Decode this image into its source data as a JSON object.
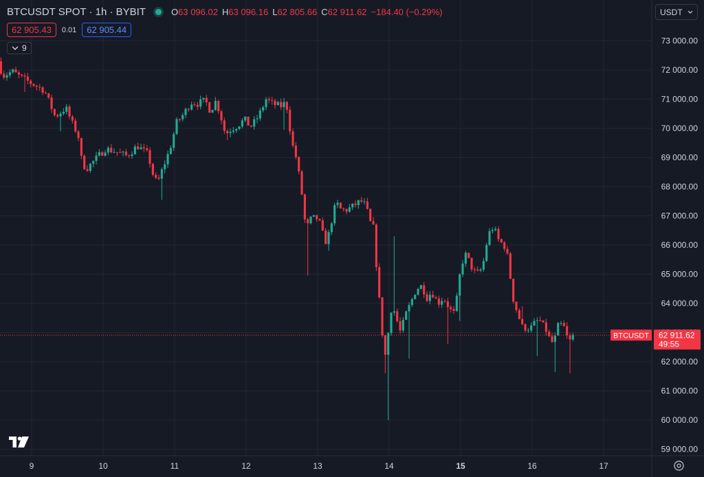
{
  "legend": {
    "symbol_line": "BTCUSDT SPOT · 1h · BYBIT",
    "open_key": "O",
    "open": "63 096.02",
    "high_key": "H",
    "high": "63 096.16",
    "low_key": "L",
    "low": "62 805.66",
    "close_key": "C",
    "close": "62 911.62",
    "change": "−184.40 (−0.29%)"
  },
  "trade": {
    "sell_price": "62 905.43",
    "spread": "0.01",
    "buy_price": "62 905.44"
  },
  "indicators": {
    "count": "9"
  },
  "currency": {
    "selected": "USDT"
  },
  "price_tag": {
    "symbol": "BTCUSDT",
    "price": "62 911.62",
    "countdown": "49:55"
  },
  "icons": {
    "logo": "tradingview-logo-icon",
    "settings": "settings-gear-icon",
    "chevron": "chevron-down-icon"
  },
  "colors": {
    "up": "#22ab94",
    "down": "#f23645",
    "background": "#161a25",
    "grid": "#242733",
    "text": "#d1d4dc",
    "buy": "#2962ff"
  },
  "chart_data": {
    "type": "candlestick",
    "symbol": "BTCUSDT",
    "exchange": "BYBIT",
    "interval": "1h",
    "currency": "USDT",
    "x_ticks": [
      {
        "label": "9",
        "day": 9
      },
      {
        "label": "10",
        "day": 10
      },
      {
        "label": "11",
        "day": 11
      },
      {
        "label": "12",
        "day": 12
      },
      {
        "label": "13",
        "day": 13
      },
      {
        "label": "14",
        "day": 14
      },
      {
        "label": "15",
        "day": 15,
        "bold": true
      },
      {
        "label": "16",
        "day": 16
      },
      {
        "label": "17",
        "day": 17
      }
    ],
    "y_ticks": [
      {
        "label": "59 000.00",
        "value": 59000
      },
      {
        "label": "60 000.00",
        "value": 60000
      },
      {
        "label": "61 000.00",
        "value": 61000
      },
      {
        "label": "62 000.00",
        "value": 62000
      },
      {
        "label": "63 000.00",
        "value": 63000
      },
      {
        "label": "64 000.00",
        "value": 64000
      },
      {
        "label": "65 000.00",
        "value": 65000
      },
      {
        "label": "66 000.00",
        "value": 66000
      },
      {
        "label": "67 000.00",
        "value": 67000
      },
      {
        "label": "68 000.00",
        "value": 68000
      },
      {
        "label": "69 000.00",
        "value": 69000
      },
      {
        "label": "70 000.00",
        "value": 70000
      },
      {
        "label": "71 000.00",
        "value": 71000
      },
      {
        "label": "72 000.00",
        "value": 72000
      },
      {
        "label": "73 000.00",
        "value": 73000
      }
    ],
    "y_range": [
      58750,
      73950
    ],
    "x_range": [
      8.5,
      17.95
    ],
    "current_price": 62911.62,
    "path": [
      [
        8.55,
        72300
      ],
      [
        8.62,
        71800
      ],
      [
        8.75,
        71950
      ],
      [
        8.9,
        71700
      ],
      [
        9.05,
        71500
      ],
      [
        9.2,
        71300
      ],
      [
        9.35,
        70400
      ],
      [
        9.5,
        70700
      ],
      [
        9.6,
        70100
      ],
      [
        9.67,
        69800
      ],
      [
        9.72,
        68900
      ],
      [
        9.78,
        68600
      ],
      [
        9.9,
        68900
      ],
      [
        10.05,
        69300
      ],
      [
        10.2,
        69200
      ],
      [
        10.35,
        69050
      ],
      [
        10.5,
        69400
      ],
      [
        10.65,
        69100
      ],
      [
        10.72,
        68400
      ],
      [
        10.78,
        68100
      ],
      [
        10.85,
        68600
      ],
      [
        10.95,
        69250
      ],
      [
        11.05,
        70200
      ],
      [
        11.15,
        70500
      ],
      [
        11.25,
        70900
      ],
      [
        11.35,
        70850
      ],
      [
        11.45,
        70950
      ],
      [
        11.52,
        70600
      ],
      [
        11.6,
        70950
      ],
      [
        11.68,
        70300
      ],
      [
        11.73,
        69800
      ],
      [
        11.8,
        69950
      ],
      [
        11.9,
        70100
      ],
      [
        12.0,
        70300
      ],
      [
        12.08,
        70050
      ],
      [
        12.15,
        70250
      ],
      [
        12.22,
        70550
      ],
      [
        12.3,
        71000
      ],
      [
        12.38,
        70850
      ],
      [
        12.5,
        70750
      ],
      [
        12.58,
        70900
      ],
      [
        12.62,
        70250
      ],
      [
        12.66,
        69500
      ],
      [
        12.72,
        69000
      ],
      [
        12.78,
        68100
      ],
      [
        12.82,
        67400
      ],
      [
        12.86,
        66400
      ],
      [
        12.9,
        66850
      ],
      [
        13.0,
        66950
      ],
      [
        13.06,
        66700
      ],
      [
        13.1,
        66300
      ],
      [
        13.14,
        66100
      ],
      [
        13.18,
        66400
      ],
      [
        13.23,
        67000
      ],
      [
        13.28,
        67450
      ],
      [
        13.35,
        67200
      ],
      [
        13.42,
        67200
      ],
      [
        13.5,
        67300
      ],
      [
        13.58,
        67450
      ],
      [
        13.65,
        67500
      ],
      [
        13.7,
        67300
      ],
      [
        13.75,
        66800
      ],
      [
        13.82,
        66500
      ],
      [
        13.84,
        65400
      ],
      [
        13.88,
        64200
      ],
      [
        13.92,
        63100
      ],
      [
        13.96,
        62100
      ],
      [
        14.02,
        63200
      ],
      [
        14.06,
        64000
      ],
      [
        14.12,
        63500
      ],
      [
        14.18,
        63000
      ],
      [
        14.25,
        63600
      ],
      [
        14.32,
        64000
      ],
      [
        14.4,
        64500
      ],
      [
        14.48,
        64600
      ],
      [
        14.55,
        64200
      ],
      [
        14.62,
        64400
      ],
      [
        14.7,
        64000
      ],
      [
        14.78,
        64200
      ],
      [
        14.85,
        63900
      ],
      [
        14.92,
        63600
      ],
      [
        14.98,
        64300
      ],
      [
        15.02,
        65200
      ],
      [
        15.08,
        65700
      ],
      [
        15.14,
        65450
      ],
      [
        15.2,
        65100
      ],
      [
        15.28,
        65000
      ],
      [
        15.35,
        65500
      ],
      [
        15.4,
        66300
      ],
      [
        15.46,
        66600
      ],
      [
        15.52,
        66400
      ],
      [
        15.56,
        66100
      ],
      [
        15.62,
        66050
      ],
      [
        15.66,
        65800
      ],
      [
        15.7,
        65300
      ],
      [
        15.74,
        64300
      ],
      [
        15.8,
        63800
      ],
      [
        15.88,
        63200
      ],
      [
        15.95,
        63150
      ],
      [
        16.0,
        63150
      ],
      [
        16.05,
        63300
      ],
      [
        16.12,
        63450
      ],
      [
        16.18,
        63200
      ],
      [
        16.24,
        63000
      ],
      [
        16.28,
        62600
      ],
      [
        16.34,
        62800
      ],
      [
        16.38,
        63200
      ],
      [
        16.45,
        63300
      ],
      [
        16.5,
        62900
      ],
      [
        16.54,
        62650
      ],
      [
        16.58,
        62911.62
      ]
    ],
    "spikes": [
      [
        8.9,
        71250
      ],
      [
        9.38,
        69900
      ],
      [
        9.7,
        68700
      ],
      [
        10.82,
        67550
      ],
      [
        11.72,
        69600
      ],
      [
        12.52,
        69950
      ],
      [
        12.83,
        64950
      ],
      [
        13.12,
        65800
      ],
      [
        13.94,
        61600
      ],
      [
        13.95,
        60000
      ],
      [
        13.96,
        61750
      ],
      [
        14.04,
        66300
      ],
      [
        14.24,
        62100
      ],
      [
        14.82,
        62600
      ],
      [
        14.98,
        63400
      ],
      [
        15.86,
        63900
      ],
      [
        16.05,
        62200
      ],
      [
        16.32,
        61650
      ],
      [
        16.52,
        61600
      ]
    ],
    "grid": true,
    "legend_position": "top-left",
    "axis_position": "right"
  }
}
